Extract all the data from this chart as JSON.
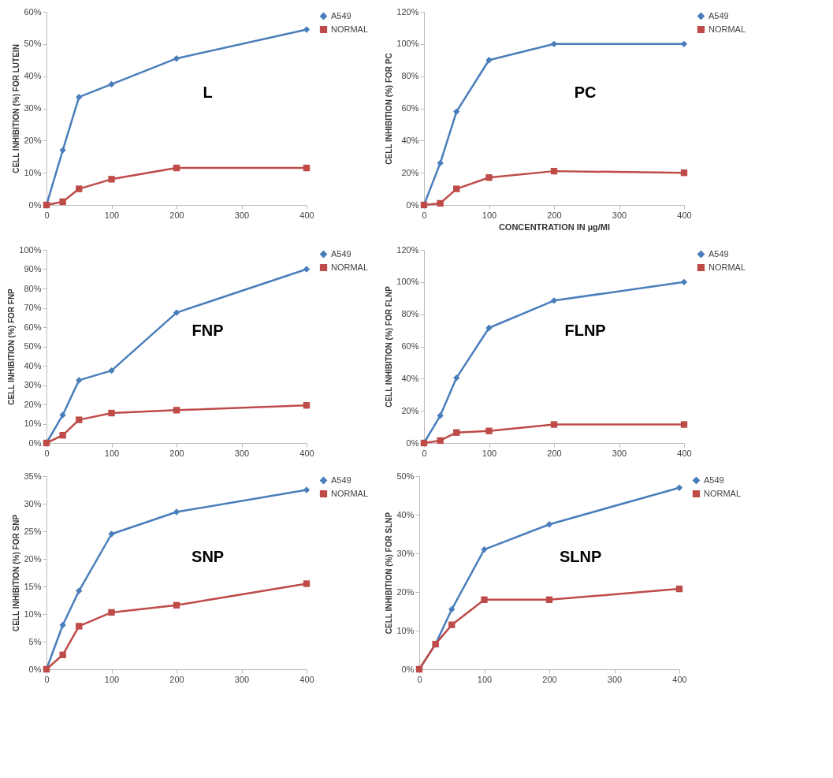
{
  "chart_data": [
    {
      "type": "line",
      "title": "L",
      "ylabel": "CELL INHIBITION (%) FOR LUTEIN",
      "x": [
        0,
        25,
        50,
        100,
        200,
        400
      ],
      "xlim": [
        0,
        400
      ],
      "xticks": [
        0,
        100,
        200,
        300,
        400
      ],
      "ylim": [
        0,
        60
      ],
      "yticks": [
        {
          "value": 0,
          "label": "0%"
        },
        {
          "value": 10,
          "label": "10%"
        },
        {
          "value": 20,
          "label": "20%"
        },
        {
          "value": 30,
          "label": "30%"
        },
        {
          "value": 40,
          "label": "40%"
        },
        {
          "value": 50,
          "label": "50%"
        },
        {
          "value": 60,
          "label": "60%"
        }
      ],
      "legend": "right",
      "line_style": "solid",
      "series": [
        {
          "name": "A549",
          "color": "#4a7ebb",
          "marker": "diamond",
          "values": [
            0,
            17,
            33.5,
            37.5,
            45.5,
            54.5
          ]
        },
        {
          "name": "NORMAL",
          "color": "#be4b48",
          "marker": "square",
          "values": [
            0,
            1,
            5,
            8,
            11.5,
            11.5
          ]
        }
      ]
    },
    {
      "type": "line",
      "title": "PC",
      "ylabel": "CELL INHIBITION (%) FOR PC",
      "xlabel": "CONCENTRATION IN µg/Ml",
      "x": [
        0,
        25,
        50,
        100,
        200,
        400
      ],
      "xlim": [
        0,
        400
      ],
      "xticks": [
        0,
        100,
        200,
        300,
        400
      ],
      "ylim": [
        0,
        120
      ],
      "yticks": [
        {
          "value": 0,
          "label": "0%"
        },
        {
          "value": 20,
          "label": "20%"
        },
        {
          "value": 40,
          "label": "40%"
        },
        {
          "value": 60,
          "label": "60%"
        },
        {
          "value": 80,
          "label": "80%"
        },
        {
          "value": 100,
          "label": "100%"
        },
        {
          "value": 120,
          "label": "120%"
        }
      ],
      "legend": "right",
      "line_style": "solid",
      "series": [
        {
          "name": "A549",
          "color": "#4a7ebb",
          "marker": "diamond",
          "values": [
            0,
            26,
            58,
            90,
            100,
            100
          ]
        },
        {
          "name": "NORMAL",
          "color": "#be4b48",
          "marker": "square",
          "values": [
            0,
            1,
            10,
            17,
            21,
            20
          ]
        }
      ]
    },
    {
      "type": "line",
      "title": "FNP",
      "ylabel": "CELL INHIBITION (%) FOR FNP",
      "x": [
        0,
        25,
        50,
        100,
        200,
        400
      ],
      "xlim": [
        0,
        400
      ],
      "xticks": [
        0,
        100,
        200,
        300,
        400
      ],
      "ylim": [
        0,
        100
      ],
      "yticks": [
        {
          "value": 0,
          "label": "0%"
        },
        {
          "value": 10,
          "label": "10%"
        },
        {
          "value": 20,
          "label": "20%"
        },
        {
          "value": 30,
          "label": "30%"
        },
        {
          "value": 40,
          "label": "40%"
        },
        {
          "value": 50,
          "label": "50%"
        },
        {
          "value": 60,
          "label": "60%"
        },
        {
          "value": 70,
          "label": "70%"
        },
        {
          "value": 80,
          "label": "80%"
        },
        {
          "value": 90,
          "label": "90%"
        },
        {
          "value": 100,
          "label": "100%"
        }
      ],
      "legend": "right",
      "line_style": "solid",
      "series": [
        {
          "name": "A549",
          "color": "#4a7ebb",
          "marker": "diamond",
          "values": [
            0,
            14.5,
            32.5,
            37.5,
            67.5,
            90
          ]
        },
        {
          "name": "NORMAL",
          "color": "#be4b48",
          "marker": "square",
          "values": [
            0,
            4,
            12,
            15.5,
            17,
            19.5
          ]
        }
      ]
    },
    {
      "type": "line",
      "title": "FLNP",
      "ylabel": "CELL INHIBITION (%) FOR FLNP",
      "x": [
        0,
        25,
        50,
        100,
        200,
        400
      ],
      "xlim": [
        0,
        400
      ],
      "xticks": [
        0,
        100,
        200,
        300,
        400
      ],
      "ylim": [
        0,
        120
      ],
      "yticks": [
        {
          "value": 0,
          "label": "0%"
        },
        {
          "value": 20,
          "label": "20%"
        },
        {
          "value": 40,
          "label": "40%"
        },
        {
          "value": 60,
          "label": "60%"
        },
        {
          "value": 80,
          "label": "80%"
        },
        {
          "value": 100,
          "label": "100%"
        },
        {
          "value": 120,
          "label": "120%"
        }
      ],
      "legend": "right",
      "line_style": "solid",
      "series": [
        {
          "name": "A549",
          "color": "#4a7ebb",
          "marker": "diamond",
          "values": [
            0,
            17,
            40.5,
            71.5,
            88.5,
            100
          ]
        },
        {
          "name": "NORMAL",
          "color": "#be4b48",
          "marker": "square",
          "values": [
            0,
            1.5,
            6.5,
            7.5,
            11.5,
            11.5
          ]
        }
      ]
    },
    {
      "type": "line",
      "title": "SNP",
      "ylabel": "CELL INHIBITION (%) FOR SNP",
      "x": [
        0,
        25,
        50,
        100,
        200,
        400
      ],
      "xlim": [
        0,
        400
      ],
      "xticks": [
        0,
        100,
        200,
        300,
        400
      ],
      "ylim": [
        0,
        35
      ],
      "yticks": [
        {
          "value": 0,
          "label": "0%"
        },
        {
          "value": 5,
          "label": "5%"
        },
        {
          "value": 10,
          "label": "10%"
        },
        {
          "value": 15,
          "label": "15%"
        },
        {
          "value": 20,
          "label": "20%"
        },
        {
          "value": 25,
          "label": "25%"
        },
        {
          "value": 30,
          "label": "30%"
        },
        {
          "value": 35,
          "label": "35%"
        }
      ],
      "legend": "right",
      "line_style": "solid",
      "series": [
        {
          "name": "A549",
          "color": "#4a7ebb",
          "marker": "diamond",
          "values": [
            0,
            8,
            14.2,
            24.5,
            28.5,
            32.5
          ]
        },
        {
          "name": "NORMAL",
          "color": "#be4b48",
          "marker": "square",
          "values": [
            0,
            2.6,
            7.8,
            10.3,
            11.6,
            15.5
          ]
        }
      ]
    },
    {
      "type": "line",
      "title": "SLNP",
      "ylabel": "CELL INHIBITION (%) FOR SLNP",
      "x": [
        0,
        25,
        50,
        100,
        200,
        400
      ],
      "xlim": [
        0,
        400
      ],
      "xticks": [
        0,
        100,
        200,
        300,
        400
      ],
      "ylim": [
        0,
        50
      ],
      "yticks": [
        {
          "value": 0,
          "label": "0%"
        },
        {
          "value": 10,
          "label": "10%"
        },
        {
          "value": 20,
          "label": "20%"
        },
        {
          "value": 30,
          "label": "30%"
        },
        {
          "value": 40,
          "label": "40%"
        },
        {
          "value": 50,
          "label": "50%"
        }
      ],
      "legend": "right",
      "line_style": "solid",
      "series": [
        {
          "name": "A549",
          "color": "#4a7ebb",
          "marker": "diamond",
          "values": [
            0,
            6.5,
            15.5,
            31,
            37.5,
            47
          ]
        },
        {
          "name": "NORMAL",
          "color": "#be4b48",
          "marker": "square",
          "values": [
            0,
            6.5,
            11.5,
            18,
            18,
            20.8
          ]
        }
      ]
    }
  ]
}
